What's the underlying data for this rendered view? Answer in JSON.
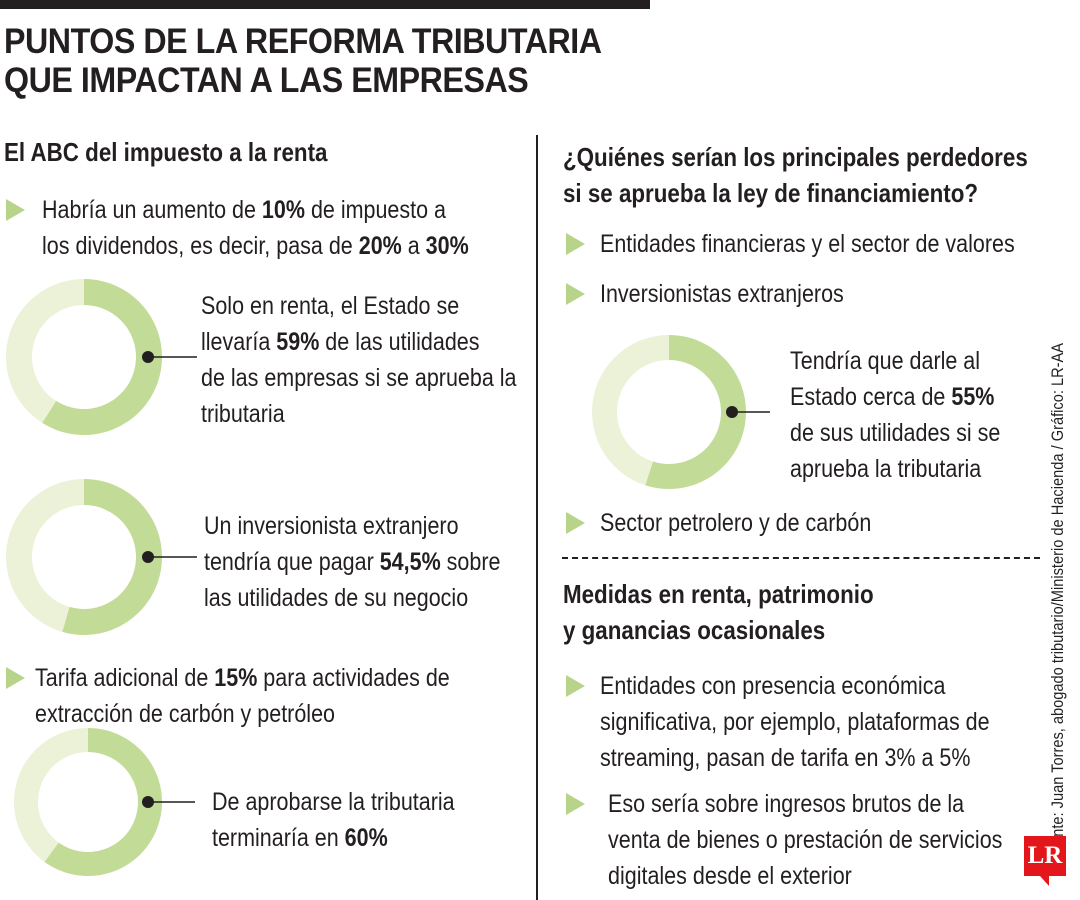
{
  "header": {
    "title_line1": "PUNTOS DE LA REFORMA TRIBUTARIA",
    "title_line2": "QUE IMPACTAN A LAS EMPRESAS"
  },
  "left": {
    "heading": "El ABC del impuesto a la renta",
    "bullet1": {
      "line1_a": "Habría un aumento de ",
      "line1_b": "10%",
      "line1_c": " de impuesto a",
      "line2_a": "los dividendos, es decir, pasa de ",
      "line2_b": "20%",
      "line2_c": " a ",
      "line2_d": "30%"
    },
    "donut1": {
      "line1": "Solo en renta, el Estado se",
      "line2_a": "llevaría ",
      "line2_b": "59%",
      "line2_c": " de las utilidades",
      "line3": "de las empresas si se aprueba la",
      "line4": "tributaria"
    },
    "donut2": {
      "line1": "Un inversionista extranjero",
      "line2_a": "tendría que pagar ",
      "line2_b": "54,5%",
      "line2_c": " sobre",
      "line3": "las utilidades de su negocio"
    },
    "bullet2": {
      "line1_a": "Tarifa adicional de ",
      "line1_b": "15%",
      "line1_c": " para actividades de",
      "line2": "extracción de carbón y petróleo"
    },
    "donut3": {
      "line1": "De aprobarse la tributaria",
      "line2_a": "terminaría en ",
      "line2_b": "60%"
    }
  },
  "right": {
    "heading_line1": "¿Quiénes serían los principales perdedores",
    "heading_line2": "si se aprueba la ley de financiamiento?",
    "item1": "Entidades financieras y el sector de valores",
    "item2": "Inversionistas extranjeros",
    "donut4": {
      "line1": "Tendría que darle al",
      "line2_a": "Estado cerca de ",
      "line2_b": "55%",
      "line3": "de sus utilidades si se",
      "line4": "aprueba la tributaria"
    },
    "item3": "Sector petrolero y de carbón",
    "heading2_line1": "Medidas en renta, patrimonio",
    "heading2_line2": "y ganancias ocasionales",
    "item4": {
      "line1": "Entidades con presencia económica",
      "line2": "significativa, por ejemplo, plataformas de",
      "line3": "streaming, pasan de tarifa en 3% a 5%"
    },
    "item5": {
      "line1": "Eso sería sobre ingresos brutos de la",
      "line2": "venta de bienes o prestación de servicios",
      "line3": "digitales desde el exterior"
    }
  },
  "footer": {
    "source": "Fuente: Juan Torres, abogado tributario/Ministerio de Hacienda / Gráfico: LR-AA",
    "logo": "LR"
  },
  "colors": {
    "filled": "#c2dc98",
    "remaining": "#ebf2d7",
    "accent": "#b8d48a",
    "text": "#231f20"
  },
  "chart_data": [
    {
      "type": "pie",
      "values": [
        59,
        41
      ]
    },
    {
      "type": "pie",
      "values": [
        54.5,
        45.5
      ]
    },
    {
      "type": "pie",
      "values": [
        60,
        40
      ]
    },
    {
      "type": "pie",
      "values": [
        55,
        45
      ]
    }
  ]
}
